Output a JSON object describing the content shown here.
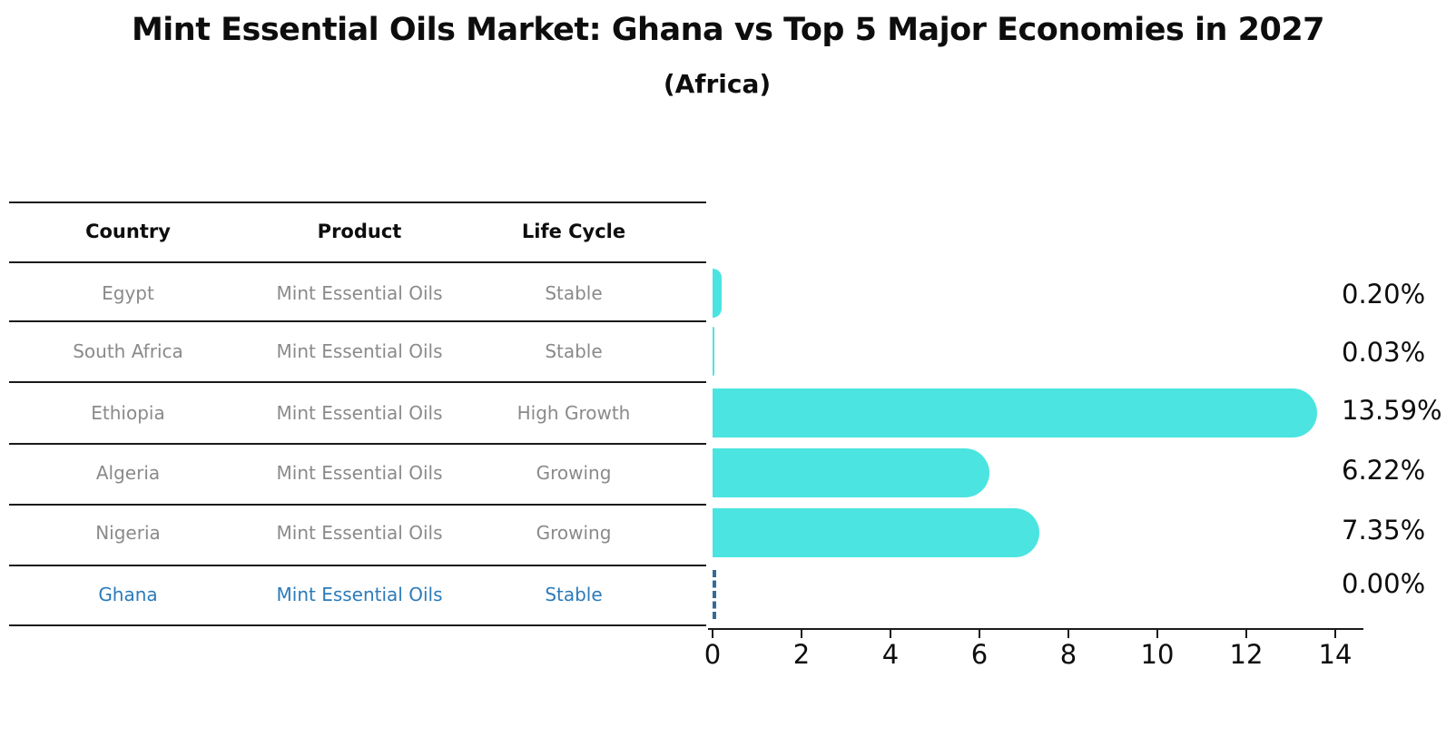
{
  "header": {
    "title": "Mint Essential Oils Market: Ghana vs Top 5 Major Economies in 2027",
    "subtitle": "(Africa)"
  },
  "table": {
    "columns": [
      "Country",
      "Product",
      "Life Cycle"
    ],
    "rows": [
      {
        "country": "Egypt",
        "product": "Mint Essential Oils",
        "life_cycle": "Stable",
        "highlight": false
      },
      {
        "country": "South Africa",
        "product": "Mint Essential Oils",
        "life_cycle": "Stable",
        "highlight": false
      },
      {
        "country": "Ethiopia",
        "product": "Mint Essential Oils",
        "life_cycle": "High Growth",
        "highlight": false
      },
      {
        "country": "Algeria",
        "product": "Mint Essential Oils",
        "life_cycle": "Growing",
        "highlight": false
      },
      {
        "country": "Nigeria",
        "product": "Mint Essential Oils",
        "life_cycle": "Growing",
        "highlight": false
      },
      {
        "country": "Ghana",
        "product": "Mint Essential Oils",
        "life_cycle": "Stable",
        "highlight": true
      }
    ]
  },
  "chart_data": {
    "type": "bar",
    "orientation": "horizontal",
    "categories": [
      "Egypt",
      "South Africa",
      "Ethiopia",
      "Algeria",
      "Nigeria",
      "Ghana"
    ],
    "values": [
      0.2,
      0.03,
      13.59,
      6.22,
      7.35,
      0.0
    ],
    "value_labels": [
      "0.20%",
      "0.03%",
      "13.59%",
      "6.22%",
      "7.35%",
      "0.00%"
    ],
    "xticks": [
      "0",
      "2",
      "4",
      "6",
      "8",
      "10",
      "12",
      "14"
    ],
    "xlim": [
      0,
      14
    ],
    "bar_color": "#4be4e0",
    "highlight_text_color": "#2b7bba",
    "ghana_marker": "dashed-line-at-zero",
    "grid": "off",
    "legend": "none"
  }
}
